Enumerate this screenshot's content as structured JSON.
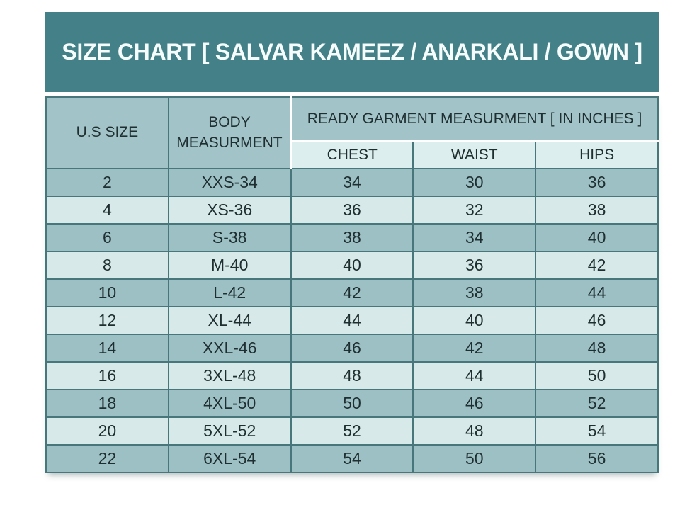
{
  "chart_data": {
    "type": "table",
    "title": "SIZE CHART [ SALVAR KAMEEZ / ANARKALI / GOWN ]",
    "header": {
      "us_size": "U.S SIZE",
      "body_measurement": "BODY MEASURMENT",
      "group": "READY GARMENT MEASURMENT [ IN INCHES ]",
      "chest": "CHEST",
      "waist": "WAIST",
      "hips": "HIPS"
    },
    "rows": [
      {
        "us_size": "2",
        "body": "XXS-34",
        "chest": "34",
        "waist": "30",
        "hips": "36"
      },
      {
        "us_size": "4",
        "body": "XS-36",
        "chest": "36",
        "waist": "32",
        "hips": "38"
      },
      {
        "us_size": "6",
        "body": "S-38",
        "chest": "38",
        "waist": "34",
        "hips": "40"
      },
      {
        "us_size": "8",
        "body": "M-40",
        "chest": "40",
        "waist": "36",
        "hips": "42"
      },
      {
        "us_size": "10",
        "body": "L-42",
        "chest": "42",
        "waist": "38",
        "hips": "44"
      },
      {
        "us_size": "12",
        "body": "XL-44",
        "chest": "44",
        "waist": "40",
        "hips": "46"
      },
      {
        "us_size": "14",
        "body": "XXL-46",
        "chest": "46",
        "waist": "42",
        "hips": "48"
      },
      {
        "us_size": "16",
        "body": "3XL-48",
        "chest": "48",
        "waist": "44",
        "hips": "50"
      },
      {
        "us_size": "18",
        "body": "4XL-50",
        "chest": "50",
        "waist": "46",
        "hips": "52"
      },
      {
        "us_size": "20",
        "body": "5XL-52",
        "chest": "52",
        "waist": "48",
        "hips": "54"
      },
      {
        "us_size": "22",
        "body": "6XL-54",
        "chest": "54",
        "waist": "50",
        "hips": "56"
      }
    ],
    "layout": {
      "row_shading": "alternating dark/light starting dark",
      "grid": "on"
    }
  },
  "colors": {
    "banner_bg": "#438087",
    "banner_text": "#f6fcfc",
    "header_bg": "#a2c3c7",
    "subheader_bg": "#ddeeee",
    "row_dark_bg": "#9cc0c4",
    "row_light_bg": "#d7eae9",
    "border": "#47767b",
    "text": "#1f2e30",
    "page_bg": "#ffffff"
  }
}
